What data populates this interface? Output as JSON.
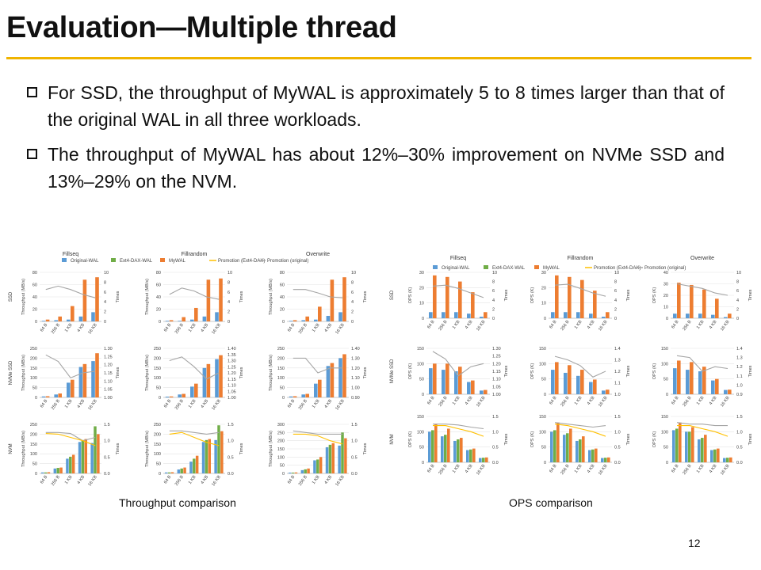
{
  "slide": {
    "title": "Evaluation—Multiple thread",
    "bullets": [
      "For SSD, the throughput of MyWAL is approximately 5 to 8 times larger than that of the original WAL in all three workloads.",
      "The throughput of MyWAL has about 12%–30% improvement on NVMe SSD and 13%–29% on the NVM."
    ],
    "captions": {
      "left": "Throughput comparison",
      "right": "OPS comparison"
    },
    "page_number": "12",
    "accent_color": "#f0b400"
  },
  "chart_data": [
    {
      "type": "bar",
      "name": "Throughput comparison",
      "workloads": [
        "Fillseq",
        "Fillrandom",
        "Overwrite"
      ],
      "devices": [
        "SSD",
        "NVMe SSD",
        "NVM"
      ],
      "categories": [
        "64 B",
        "256 B",
        "1 KB",
        "4 KB",
        "16 KB"
      ],
      "ylabel": "Throughput (MB/s)",
      "y2label": "Times",
      "legend": [
        "Original-WAL",
        "Ext4-DAX-WAL",
        "MyWAL",
        "Promotion (Ext4-DAX)",
        "Promotion (original)"
      ],
      "colors": {
        "Original-WAL": "#5b9bd5",
        "Ext4-DAX-WAL": "#70ad47",
        "MyWAL": "#ed7d31",
        "Promotion (Ext4-DAX)": "#ffc000",
        "Promotion (original)": "#a5a5a5"
      },
      "panels": [
        {
          "device": "SSD",
          "workload": "Fillseq",
          "ymax": 80,
          "yticks": [
            0,
            20,
            40,
            60,
            80
          ],
          "y2ticks": [
            "0",
            "2",
            "4",
            "6",
            "8",
            "10"
          ],
          "series": {
            "Original-WAL": [
              1,
              2,
              3,
              8,
              15
            ],
            "MyWAL": [
              3,
              8,
              25,
              68,
              72
            ]
          },
          "promo_original": [
            6.5,
            7.2,
            6.5,
            5.5,
            4.8
          ]
        },
        {
          "device": "SSD",
          "workload": "Fillrandom",
          "ymax": 80,
          "yticks": [
            0,
            20,
            40,
            60,
            80
          ],
          "y2ticks": [
            "0",
            "2",
            "4",
            "6",
            "8",
            "10"
          ],
          "series": {
            "Original-WAL": [
              1,
              1,
              3,
              8,
              15
            ],
            "MyWAL": [
              2,
              7,
              22,
              68,
              70
            ]
          },
          "promo_original": [
            5.5,
            6.8,
            6.2,
            5.0,
            4.5
          ]
        },
        {
          "device": "SSD",
          "workload": "Overwrite",
          "ymax": 80,
          "yticks": [
            0,
            20,
            40,
            60,
            80
          ],
          "y2ticks": [
            "0",
            "2",
            "4",
            "6",
            "8",
            "10"
          ],
          "series": {
            "Original-WAL": [
              1,
              2,
              3,
              9,
              15
            ],
            "MyWAL": [
              2,
              8,
              24,
              68,
              72
            ]
          },
          "promo_original": [
            6.5,
            6.5,
            5.8,
            5.0,
            4.8
          ]
        },
        {
          "device": "NVMe SSD",
          "workload": "Fillseq",
          "ymax": 250,
          "yticks": [
            0,
            50,
            100,
            150,
            200,
            250
          ],
          "y2ticks": [
            "1.00",
            "1.05",
            "1.10",
            "1.15",
            "1.20",
            "1.25",
            "1.30"
          ],
          "series": {
            "Original-WAL": [
              5,
              15,
              75,
              155,
              185
            ],
            "MyWAL": [
              6,
              20,
              90,
              170,
              225
            ]
          },
          "promo_original": [
            1.26,
            1.22,
            1.12,
            1.15,
            1.16
          ]
        },
        {
          "device": "NVMe SSD",
          "workload": "Fillrandom",
          "ymax": 250,
          "yticks": [
            0,
            50,
            100,
            150,
            200,
            250
          ],
          "y2ticks": [
            "1.00",
            "1.05",
            "1.10",
            "1.15",
            "1.20",
            "1.25",
            "1.30",
            "1.35",
            "1.40"
          ],
          "series": {
            "Original-WAL": [
              4,
              15,
              55,
              150,
              195
            ],
            "MyWAL": [
              5,
              18,
              70,
              170,
              215
            ]
          },
          "promo_original": [
            1.3,
            1.33,
            1.25,
            1.15,
            1.2
          ]
        },
        {
          "device": "NVMe SSD",
          "workload": "Overwrite",
          "ymax": 250,
          "yticks": [
            0,
            50,
            100,
            150,
            200,
            250
          ],
          "y2ticks": [
            "0.90",
            "1.00",
            "1.10",
            "1.20",
            "1.30",
            "1.40"
          ],
          "series": {
            "Original-WAL": [
              5,
              15,
              70,
              160,
              200
            ],
            "MyWAL": [
              6,
              18,
              90,
              175,
              220
            ]
          },
          "promo_original": [
            1.3,
            1.3,
            1.15,
            1.2,
            1.2
          ]
        },
        {
          "device": "NVM",
          "workload": "Fillseq",
          "ymax": 250,
          "yticks": [
            0,
            50,
            100,
            150,
            200,
            250
          ],
          "y2ticks": [
            "0.0",
            "0.5",
            "1.0",
            "1.5"
          ],
          "series": {
            "Original-WAL": [
              5,
              25,
              75,
              160,
              155
            ],
            "Ext4-DAX-WAL": [
              5,
              28,
              85,
              170,
              240
            ],
            "MyWAL": [
              6,
              30,
              95,
              175,
              200
            ]
          },
          "promo_original": [
            1.25,
            1.25,
            1.22,
            1.0,
            1.1
          ],
          "promo_dax": [
            1.22,
            1.2,
            1.1,
            1.0,
            0.85
          ]
        },
        {
          "device": "NVM",
          "workload": "Fillrandom",
          "ymax": 250,
          "yticks": [
            0,
            50,
            100,
            150,
            200,
            250
          ],
          "y2ticks": [
            "0.0",
            "0.5",
            "1.0",
            "1.5"
          ],
          "series": {
            "Original-WAL": [
              5,
              20,
              60,
              160,
              170
            ],
            "Ext4-DAX-WAL": [
              5,
              25,
              75,
              170,
              245
            ],
            "MyWAL": [
              6,
              30,
              90,
              175,
              215
            ]
          },
          "promo_original": [
            1.3,
            1.3,
            1.25,
            1.2,
            1.25
          ],
          "promo_dax": [
            1.2,
            1.25,
            1.1,
            0.95,
            0.85
          ]
        },
        {
          "device": "NVM",
          "workload": "Overwrite",
          "ymax": 300,
          "yticks": [
            0,
            50,
            100,
            150,
            200,
            250,
            300
          ],
          "y2ticks": [
            "0.0",
            "0.5",
            "1.0",
            "1.5"
          ],
          "series": {
            "Original-WAL": [
              5,
              20,
              80,
              160,
              170
            ],
            "Ext4-DAX-WAL": [
              5,
              25,
              85,
              175,
              250
            ],
            "MyWAL": [
              6,
              30,
              100,
              185,
              215
            ]
          },
          "promo_original": [
            1.3,
            1.25,
            1.2,
            1.2,
            1.2
          ],
          "promo_dax": [
            1.2,
            1.2,
            1.15,
            1.0,
            0.9
          ]
        }
      ]
    },
    {
      "type": "bar",
      "name": "OPS comparison",
      "workloads": [
        "Fillseq",
        "Fillrandom",
        "Overwrite"
      ],
      "devices": [
        "SSD",
        "NVMe SSD",
        "NVM"
      ],
      "categories": [
        "64 B",
        "256 B",
        "1 KB",
        "4 KB",
        "16 KB"
      ],
      "ylabel": "OPS (K)",
      "y2label": "Times",
      "legend": [
        "Original-WAL",
        "Ext4-DAX-WAL",
        "MyWAL",
        "Promotion (Ext4-DAX)",
        "Promotion (original)"
      ],
      "colors": {
        "Original-WAL": "#5b9bd5",
        "Ext4-DAX-WAL": "#70ad47",
        "MyWAL": "#ed7d31",
        "Promotion (Ext4-DAX)": "#ffc000",
        "Promotion (original)": "#a5a5a5"
      },
      "panels": [
        {
          "device": "SSD",
          "workload": "Fillseq",
          "ymax": 30,
          "yticks": [
            0,
            10,
            20,
            30
          ],
          "y2ticks": [
            "0",
            "2",
            "4",
            "6",
            "8",
            "10"
          ],
          "series": {
            "Original-WAL": [
              4,
              4,
              4,
              3,
              1
            ],
            "MyWAL": [
              28,
              27,
              24,
              17,
              4
            ]
          },
          "promo_original": [
            7.0,
            7.2,
            6.5,
            5.5,
            4.5
          ]
        },
        {
          "device": "SSD",
          "workload": "Fillrandom",
          "ymax": 30,
          "yticks": [
            0,
            10,
            20,
            30
          ],
          "y2ticks": [
            "0",
            "2",
            "4",
            "6",
            "8",
            "10"
          ],
          "series": {
            "Original-WAL": [
              4,
              4,
              4,
              3,
              1
            ],
            "MyWAL": [
              28,
              27,
              25,
              18,
              4
            ]
          },
          "promo_original": [
            7.2,
            7.4,
            6.5,
            5.5,
            4.8
          ]
        },
        {
          "device": "SSD",
          "workload": "Overwrite",
          "ymax": 40,
          "yticks": [
            0,
            10,
            20,
            30,
            40
          ],
          "y2ticks": [
            "0",
            "2",
            "4",
            "6",
            "8",
            "10"
          ],
          "series": {
            "Original-WAL": [
              4,
              4,
              4,
              3,
              1
            ],
            "MyWAL": [
              31,
              29,
              25,
              17,
              4
            ]
          },
          "promo_original": [
            7.5,
            7.0,
            6.5,
            5.5,
            5.0
          ]
        },
        {
          "device": "NVMe SSD",
          "workload": "Fillseq",
          "ymax": 150,
          "yticks": [
            0,
            50,
            100,
            150
          ],
          "y2ticks": [
            "1.00",
            "1.05",
            "1.10",
            "1.15",
            "1.20",
            "1.25",
            "1.30"
          ],
          "series": {
            "Original-WAL": [
              85,
              80,
              75,
              40,
              12
            ],
            "MyWAL": [
              100,
              100,
              90,
              45,
              14
            ]
          },
          "promo_original": [
            1.28,
            1.23,
            1.12,
            1.18,
            1.2
          ]
        },
        {
          "device": "NVMe SSD",
          "workload": "Fillrandom",
          "ymax": 150,
          "yticks": [
            0,
            50,
            100,
            150
          ],
          "y2ticks": [
            "1.0",
            "1.1",
            "1.2",
            "1.3",
            "1.4"
          ],
          "series": {
            "Original-WAL": [
              80,
              70,
              60,
              40,
              12
            ],
            "MyWAL": [
              105,
              95,
              80,
              48,
              15
            ]
          },
          "promo_original": [
            1.33,
            1.3,
            1.25,
            1.15,
            1.2
          ]
        },
        {
          "device": "NVMe SSD",
          "workload": "Overwrite",
          "ymax": 150,
          "yticks": [
            0,
            50,
            100,
            150
          ],
          "y2ticks": [
            "0.9",
            "1.0",
            "1.1",
            "1.2",
            "1.3",
            "1.4"
          ],
          "series": {
            "Original-WAL": [
              85,
              80,
              75,
              45,
              14
            ],
            "MyWAL": [
              110,
              105,
              90,
              50,
              15
            ]
          },
          "promo_original": [
            1.32,
            1.3,
            1.15,
            1.2,
            1.18
          ]
        },
        {
          "device": "NVM",
          "workload": "Fillseq",
          "ymax": 150,
          "yticks": [
            0,
            50,
            100,
            150
          ],
          "y2ticks": [
            "0.0",
            "0.5",
            "1.0",
            "1.5"
          ],
          "series": {
            "Original-WAL": [
              100,
              85,
              70,
              40,
              14
            ],
            "Ext4-DAX-WAL": [
              105,
              90,
              75,
              42,
              15
            ],
            "MyWAL": [
              125,
              110,
              80,
              45,
              16
            ]
          },
          "promo_original": [
            1.25,
            1.25,
            1.22,
            1.15,
            1.1
          ],
          "promo_dax": [
            1.2,
            1.2,
            1.1,
            1.0,
            0.85
          ]
        },
        {
          "device": "NVM",
          "workload": "Fillrandom",
          "ymax": 150,
          "yticks": [
            0,
            50,
            100,
            150
          ],
          "y2ticks": [
            "0.0",
            "0.5",
            "1.0",
            "1.5"
          ],
          "series": {
            "Original-WAL": [
              100,
              90,
              70,
              40,
              14
            ],
            "Ext4-DAX-WAL": [
              105,
              95,
              75,
              42,
              15
            ],
            "MyWAL": [
              130,
              110,
              85,
              45,
              16
            ]
          },
          "promo_original": [
            1.3,
            1.25,
            1.2,
            1.15,
            1.2
          ],
          "promo_dax": [
            1.25,
            1.2,
            1.1,
            1.0,
            0.85
          ]
        },
        {
          "device": "NVM",
          "workload": "Overwrite",
          "ymax": 150,
          "yticks": [
            0,
            50,
            100,
            150
          ],
          "y2ticks": [
            "0.0",
            "0.5",
            "1.0",
            "1.5"
          ],
          "series": {
            "Original-WAL": [
              105,
              100,
              75,
              40,
              14
            ],
            "Ext4-DAX-WAL": [
              110,
              100,
              80,
              42,
              15
            ],
            "MyWAL": [
              130,
              115,
              90,
              45,
              16
            ]
          },
          "promo_original": [
            1.3,
            1.25,
            1.25,
            1.2,
            1.2
          ],
          "promo_dax": [
            1.2,
            1.2,
            1.1,
            1.0,
            0.85
          ]
        }
      ]
    }
  ]
}
